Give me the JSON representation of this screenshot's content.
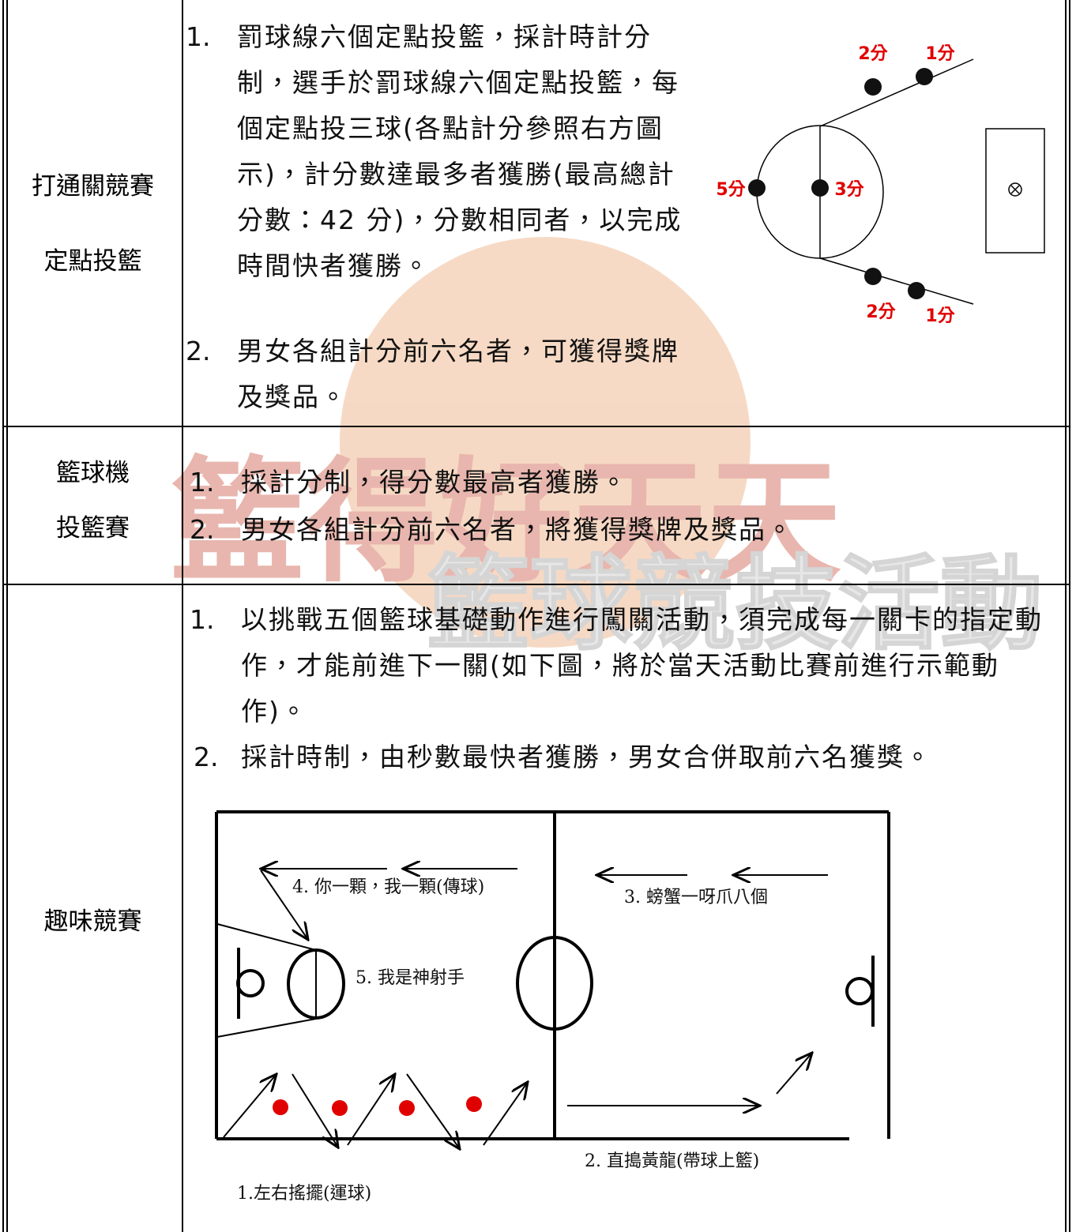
{
  "table": {
    "rows": [
      {
        "label": [
          "打通關競賽",
          "定點投籃"
        ],
        "items": [
          {
            "number": "1.",
            "text": "罰球線六個定點投籃，採計時計分制，選手於罰球線六個定點投籃，每個定點投三球(各點計分參照右方圖示)，計分數達最多者獲勝(最高總計分數：42 分)，分數相同者，以完成時間快者獲勝。"
          },
          {
            "number": "2.",
            "text": "男女各組計分前六名者，可獲得獎牌及獎品。"
          }
        ],
        "diagram": {
          "labels": [
            "2分",
            "1分",
            "5分",
            "3分",
            "2分",
            "1分"
          ]
        }
      },
      {
        "label": [
          "籃球機",
          "投籃賽"
        ],
        "items": [
          {
            "number": "1.",
            "text": "採計分制，得分數最高者獲勝。"
          },
          {
            "number": "2.",
            "text": "男女各組計分前六名者，將獲得獎牌及獎品。"
          }
        ]
      },
      {
        "label": [
          "趣味競賽"
        ],
        "items": [
          {
            "number": "1.",
            "text": "以挑戰五個籃球基礎動作進行闖關活動，須完成每一關卡的指定動作，才能前進下一關(如下圖，將於當天活動比賽前進行示範動作)。"
          },
          {
            "number": "2.",
            "text": "採計時制，由秒數最快者獲勝，男女合併取前六名獲獎。"
          }
        ],
        "diagram": {
          "labels": [
            "4. 你一顆，我一顆(傳球)",
            "3. 螃蟹一呀爪八個",
            "5. 我是神射手",
            "2. 直搗黃龍(帶球上籃)",
            "1.左右搖擺(運球)"
          ]
        }
      }
    ]
  },
  "watermark": [
    "籃得好天天",
    "籃球競技活動"
  ]
}
